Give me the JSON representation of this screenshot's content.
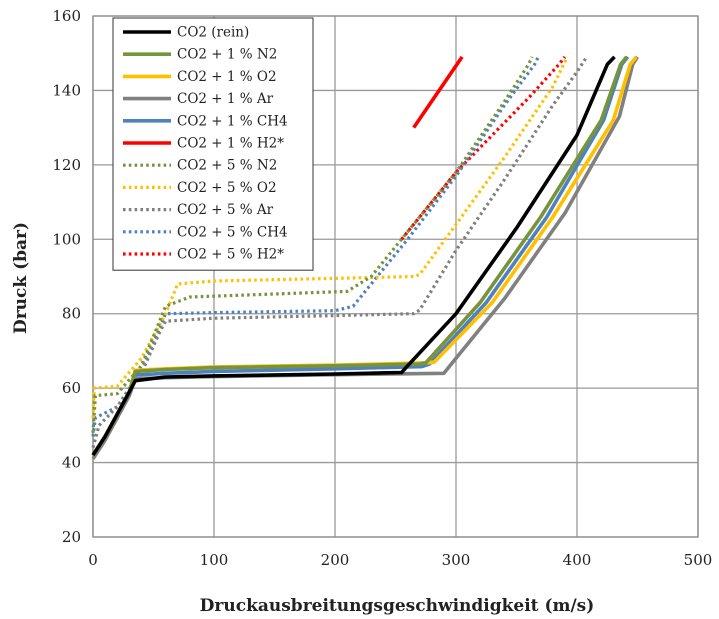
{
  "chart_data": {
    "type": "line",
    "xlabel": "Druckausbreitungsgeschwindigkeit (m/s)",
    "ylabel": "Druck (bar)",
    "xlim": [
      0,
      500
    ],
    "ylim": [
      20,
      160
    ],
    "xticks": [
      "0",
      "100",
      "200",
      "300",
      "400",
      "500"
    ],
    "yticks": [
      "20",
      "40",
      "60",
      "80",
      "100",
      "120",
      "140",
      "160"
    ],
    "grid": true,
    "legend_position": "top-left",
    "series": [
      {
        "name": "CO2 (rein)",
        "color": "#000000",
        "style": "solid",
        "x": [
          0,
          10,
          20,
          30,
          35,
          60,
          100,
          200,
          255,
          260,
          300,
          350,
          400,
          425,
          431
        ],
        "y": [
          42,
          47,
          53,
          59,
          62,
          63,
          63.3,
          63.8,
          64.2,
          66,
          80,
          103,
          128,
          147,
          149
        ]
      },
      {
        "name": "CO2 + 1 % N2",
        "color": "#77933c",
        "style": "solid",
        "x": [
          0,
          10,
          20,
          30,
          35,
          60,
          100,
          200,
          270,
          275,
          320,
          370,
          420,
          436,
          441
        ],
        "y": [
          42,
          47,
          53,
          59,
          64.5,
          65,
          65.5,
          66,
          66.5,
          66.8,
          83,
          106,
          132,
          147,
          149
        ]
      },
      {
        "name": "CO2 + 1 % O2",
        "color": "#ffc000",
        "style": "solid",
        "x": [
          0,
          10,
          20,
          30,
          35,
          60,
          100,
          200,
          275,
          282,
          330,
          380,
          430,
          444,
          449
        ],
        "y": [
          42,
          47,
          53,
          59,
          64.8,
          65.2,
          65.7,
          66.2,
          66.8,
          67,
          83,
          106,
          132,
          147,
          149
        ]
      },
      {
        "name": "CO2 + 1 % Ar",
        "color": "#808080",
        "style": "solid",
        "x": [
          0,
          10,
          20,
          30,
          35,
          60,
          100,
          200,
          290,
          295,
          340,
          390,
          435,
          446,
          450
        ],
        "y": [
          41,
          46,
          52,
          58,
          62.5,
          62.8,
          63.1,
          63.6,
          64,
          66,
          84,
          107,
          133,
          147,
          149
        ]
      },
      {
        "name": "CO2 + 1 % CH4",
        "color": "#4f81bd",
        "style": "solid",
        "x": [
          0,
          10,
          20,
          30,
          35,
          60,
          100,
          200,
          272,
          278,
          325,
          375,
          422,
          437,
          442
        ],
        "y": [
          42,
          47,
          53,
          59,
          63.5,
          64,
          64.5,
          65.2,
          65.8,
          66.5,
          83,
          106,
          132,
          147,
          149
        ]
      },
      {
        "name": "CO2 + 1 % H2*",
        "color": "#ff0000",
        "style": "solid",
        "x": [
          265,
          305
        ],
        "y": [
          130,
          149
        ]
      },
      {
        "name": "CO2 + 5 % N2",
        "color": "#77933c",
        "style": "dotted",
        "x": [
          0,
          2,
          20,
          40,
          55,
          60,
          80,
          150,
          210,
          230,
          260,
          300,
          340,
          360,
          363
        ],
        "y": [
          48,
          58,
          58.5,
          66,
          78,
          82,
          84.5,
          85.3,
          86,
          90,
          102,
          118,
          137,
          147,
          149
        ]
      },
      {
        "name": "CO2 + 5 % O2",
        "color": "#ffc000",
        "style": "dotted",
        "x": [
          0,
          1,
          20,
          40,
          60,
          70,
          100,
          200,
          265,
          270,
          300,
          340,
          380,
          392
        ],
        "y": [
          52,
          60,
          60.5,
          68,
          80,
          88,
          88.8,
          89.5,
          90,
          90.5,
          104,
          122,
          141,
          149
        ]
      },
      {
        "name": "CO2 + 5 % Ar",
        "color": "#808080",
        "style": "dotted",
        "x": [
          0,
          5,
          20,
          40,
          55,
          60,
          100,
          200,
          265,
          270,
          300,
          340,
          380,
          400,
          408
        ],
        "y": [
          44,
          50,
          55,
          64,
          75,
          78,
          78.8,
          79.5,
          80,
          81,
          97,
          116,
          136,
          145,
          149
        ]
      },
      {
        "name": "CO2 + 5 % CH4",
        "color": "#4f81bd",
        "style": "dotted",
        "x": [
          0,
          2,
          20,
          40,
          55,
          60,
          100,
          200,
          215,
          230,
          260,
          300,
          340,
          365,
          368
        ],
        "y": [
          47,
          52,
          55,
          65,
          76,
          80,
          80.3,
          80.8,
          82,
          88,
          100,
          117,
          136,
          147,
          149
        ]
      },
      {
        "name": "CO2 + 5 % H2*",
        "color": "#ff0000",
        "style": "dotted",
        "x": [
          255,
          270,
          300,
          330,
          360,
          385,
          390
        ],
        "y": [
          100,
          106,
          118,
          128,
          138,
          147,
          149
        ]
      }
    ]
  }
}
